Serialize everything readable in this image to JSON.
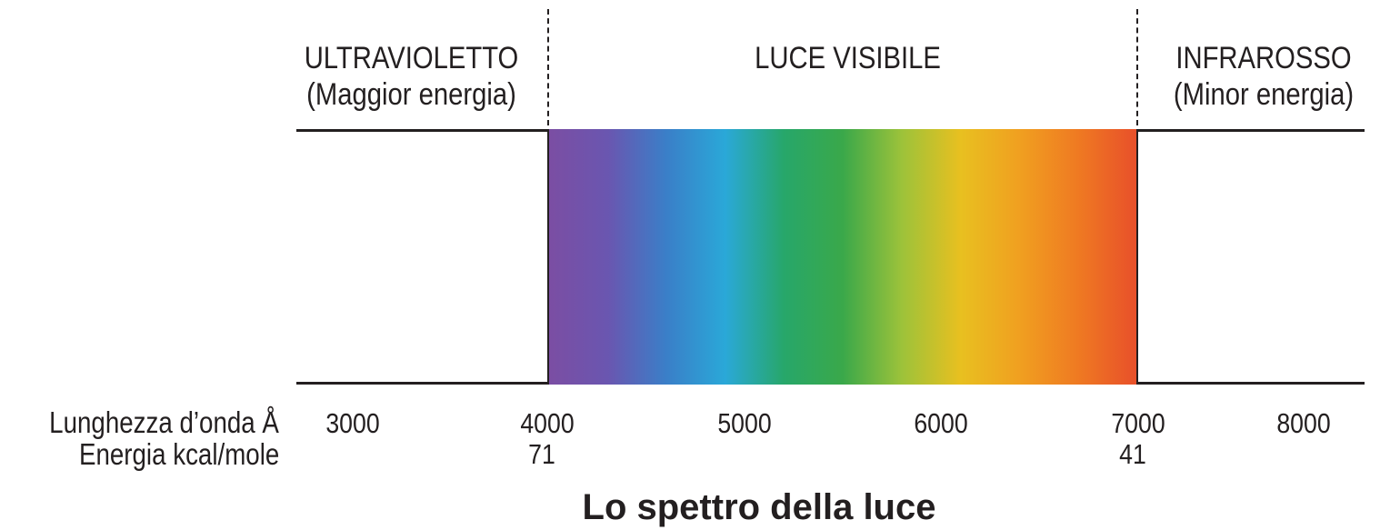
{
  "regions": {
    "ultraviolet": {
      "name": "ULTRAVIOLETTO",
      "note": "(Maggior energia)"
    },
    "visible": {
      "name": "LUCE VISIBILE"
    },
    "infrared": {
      "name": "INFRAROSSO",
      "note": "(Minor energia)"
    }
  },
  "axis": {
    "wavelength_title": "Lunghezza d’onda Å",
    "energy_title": "Energia kcal/mole",
    "wavelength_ticks": [
      "3000",
      "4000",
      "5000",
      "6000",
      "7000",
      "8000"
    ],
    "energy_ticks": [
      {
        "wavelength": 4000,
        "label": "71"
      },
      {
        "wavelength": 7000,
        "label": "41"
      }
    ]
  },
  "spectrum": {
    "start_wavelength": 4000,
    "end_wavelength": 7000,
    "colors": [
      "#7b4ea3",
      "#6a56b0",
      "#3a7fc8",
      "#2aa8d8",
      "#27a76a",
      "#3aa84a",
      "#9cc23a",
      "#e8c020",
      "#f0a020",
      "#ef7a22",
      "#e8502a"
    ]
  },
  "title": "Lo spettro della luce"
}
